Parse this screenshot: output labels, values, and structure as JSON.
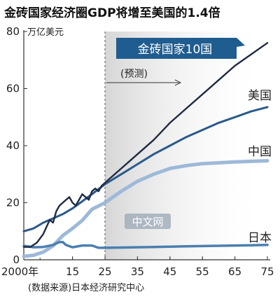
{
  "chart_data": {
    "type": "line",
    "title": "金砖国家经济圈GDP将增至美国的1.4倍",
    "y_unit": "万亿美元",
    "ylim": [
      0,
      80
    ],
    "y_ticks": [
      "0",
      "20",
      "40",
      "60",
      "80"
    ],
    "x_ticks": [
      "2000年",
      "15",
      "25",
      "35",
      "45",
      "55",
      "65",
      "75"
    ],
    "x_tick_years": [
      2000,
      2015,
      2025,
      2035,
      2045,
      2055,
      2065,
      2075
    ],
    "xlim": [
      2000,
      2075
    ],
    "forecast_start": 2025,
    "forecast_label": "(预测)",
    "banner_label": "金砖国家10国",
    "source": "(数据来源)日本经济研究中心",
    "watermark": "中文网",
    "grid": false,
    "colors": {
      "brics": "#1f2a44",
      "usa": "#2a5a8c",
      "china": "#9db9d8",
      "japan": "#4a7fb0",
      "forecast_shade": "#dcdcdc",
      "banner": "#1f5c8f"
    },
    "series": [
      {
        "name": "金砖国家10国",
        "x": [
          2000,
          2002,
          2004,
          2006,
          2008,
          2009,
          2010,
          2011,
          2012,
          2013,
          2014,
          2015,
          2016,
          2017,
          2018,
          2019,
          2020,
          2021,
          2022,
          2023,
          2024,
          2025,
          2030,
          2035,
          2040,
          2045,
          2050,
          2055,
          2060,
          2065,
          2070,
          2075
        ],
        "values": [
          4.5,
          4.5,
          6,
          9,
          14,
          13,
          17,
          19,
          20,
          21,
          22,
          20,
          19,
          21,
          23,
          22,
          21,
          24,
          25,
          24,
          26,
          27,
          32,
          37,
          42,
          48,
          53,
          58,
          63,
          68,
          72,
          76
        ]
      },
      {
        "name": "美国",
        "x": [
          2000,
          2003,
          2006,
          2009,
          2012,
          2015,
          2018,
          2021,
          2025,
          2030,
          2035,
          2040,
          2045,
          2050,
          2055,
          2060,
          2065,
          2070,
          2075
        ],
        "values": [
          10,
          11,
          13,
          14.5,
          16,
          18,
          20.5,
          23,
          26.5,
          30,
          33.5,
          37,
          40,
          43,
          45.5,
          48,
          50,
          52,
          53.5
        ]
      },
      {
        "name": "中国",
        "x": [
          2000,
          2003,
          2006,
          2009,
          2012,
          2015,
          2018,
          2021,
          2025,
          2030,
          2035,
          2040,
          2045,
          2050,
          2055,
          2060,
          2065,
          2070,
          2075
        ],
        "values": [
          1.2,
          1.6,
          2.7,
          4.9,
          8.5,
          11,
          13.8,
          17.7,
          20,
          24,
          27.5,
          30,
          32,
          33,
          33.7,
          34,
          34.3,
          34.5,
          34.7
        ]
      },
      {
        "name": "日本",
        "x": [
          2000,
          2003,
          2006,
          2009,
          2011,
          2012,
          2013,
          2015,
          2018,
          2021,
          2023,
          2025,
          2030,
          2035,
          2040,
          2045,
          2050,
          2055,
          2060,
          2065,
          2070,
          2075
        ],
        "values": [
          4.9,
          4.4,
          4.5,
          5.2,
          6.2,
          6.2,
          5.2,
          4.4,
          5,
          5,
          4.2,
          4.2,
          4.3,
          4.4,
          4.5,
          4.6,
          4.7,
          4.8,
          4.9,
          5,
          5.1,
          5.2
        ]
      }
    ]
  }
}
